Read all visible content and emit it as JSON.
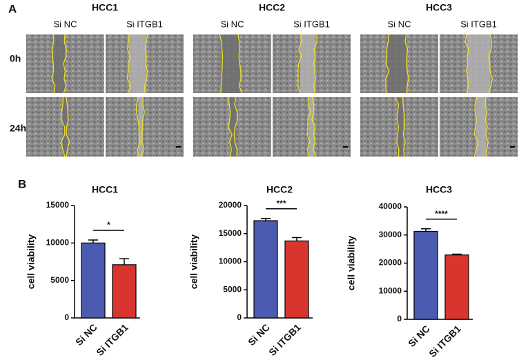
{
  "panel_a": {
    "label": "A",
    "groups": [
      {
        "title": "HCC1",
        "columns": [
          "Si NC",
          "Si ITGB1"
        ]
      },
      {
        "title": "HCC2",
        "columns": [
          "Si NC",
          "Si ITGB1"
        ]
      },
      {
        "title": "HCC3",
        "columns": [
          "Si NC",
          "Si ITGB1"
        ]
      }
    ],
    "rows": [
      "0h",
      "24h"
    ]
  },
  "panel_b": {
    "label": "B"
  },
  "chart_data": [
    {
      "type": "bar",
      "title": "HCC1",
      "ylabel": "cell viability",
      "categories": [
        "Si NC",
        "Si ITGB1"
      ],
      "values": [
        10000,
        7100
      ],
      "errors": [
        400,
        800
      ],
      "colors": [
        "#4a5bb0",
        "#d8352f"
      ],
      "ylim": [
        0,
        15000
      ],
      "yticks": [
        0,
        5000,
        10000,
        15000
      ],
      "annotation": "*"
    },
    {
      "type": "bar",
      "title": "HCC2",
      "ylabel": "cell viability",
      "categories": [
        "Si NC",
        "Si ITGB1"
      ],
      "values": [
        17300,
        13700
      ],
      "errors": [
        400,
        600
      ],
      "colors": [
        "#4a5bb0",
        "#d8352f"
      ],
      "ylim": [
        0,
        20000
      ],
      "yticks": [
        0,
        5000,
        10000,
        15000,
        20000
      ],
      "annotation": "***"
    },
    {
      "type": "bar",
      "title": "HCC3",
      "ylabel": "cell viability",
      "categories": [
        "Si NC",
        "Si ITGB1"
      ],
      "values": [
        31300,
        22900
      ],
      "errors": [
        900,
        300
      ],
      "colors": [
        "#4a5bb0",
        "#d8352f"
      ],
      "ylim": [
        0,
        40000
      ],
      "yticks": [
        0,
        10000,
        20000,
        30000,
        40000
      ],
      "annotation": "****"
    }
  ]
}
